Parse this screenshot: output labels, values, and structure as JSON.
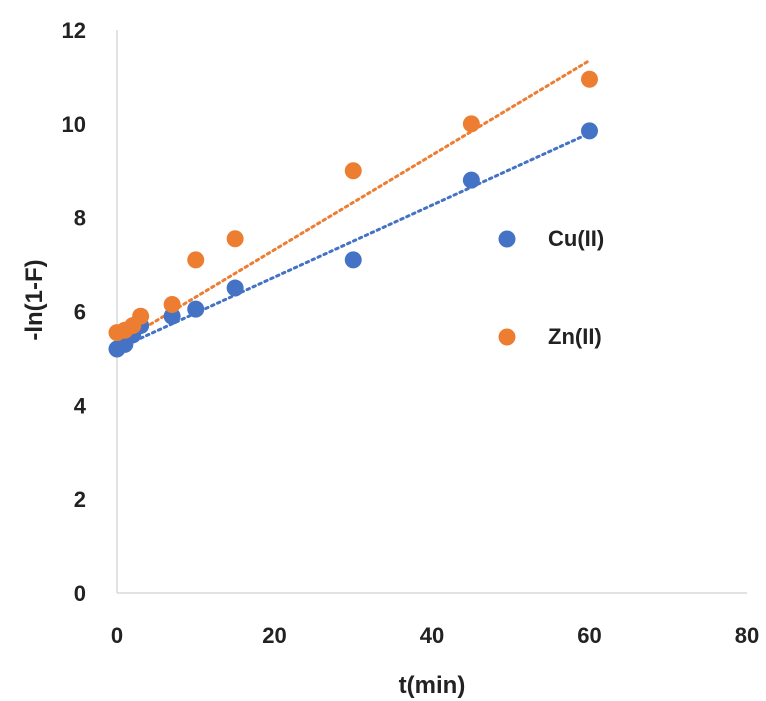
{
  "chart_data": {
    "type": "scatter",
    "xlabel": "t(min)",
    "ylabel": "-ln(1-F)",
    "xlim": [
      0,
      80
    ],
    "ylim": [
      0,
      12
    ],
    "x_ticks": [
      0,
      20,
      40,
      60,
      80
    ],
    "y_ticks": [
      0,
      2,
      4,
      6,
      8,
      10,
      12
    ],
    "grid": false,
    "legend_position": "right",
    "series": [
      {
        "name": "Cu(II)",
        "color": "#4472C4",
        "x": [
          0,
          1,
          2,
          3,
          7,
          10,
          15,
          30,
          45,
          60
        ],
        "y": [
          5.2,
          5.3,
          5.5,
          5.7,
          5.9,
          6.05,
          6.5,
          7.1,
          8.8,
          9.85
        ],
        "trendline": {
          "style": "dotted",
          "x": [
            0,
            60
          ],
          "y": [
            5.2,
            9.8
          ]
        }
      },
      {
        "name": "Zn(II)",
        "color": "#ED7D31",
        "x": [
          0,
          1,
          2,
          3,
          7,
          10,
          15,
          30,
          45,
          60
        ],
        "y": [
          5.55,
          5.6,
          5.7,
          5.9,
          6.15,
          7.1,
          7.55,
          9.0,
          10.0,
          10.95
        ],
        "trendline": {
          "style": "dotted",
          "x": [
            0,
            60
          ],
          "y": [
            5.3,
            11.35
          ]
        }
      }
    ]
  }
}
